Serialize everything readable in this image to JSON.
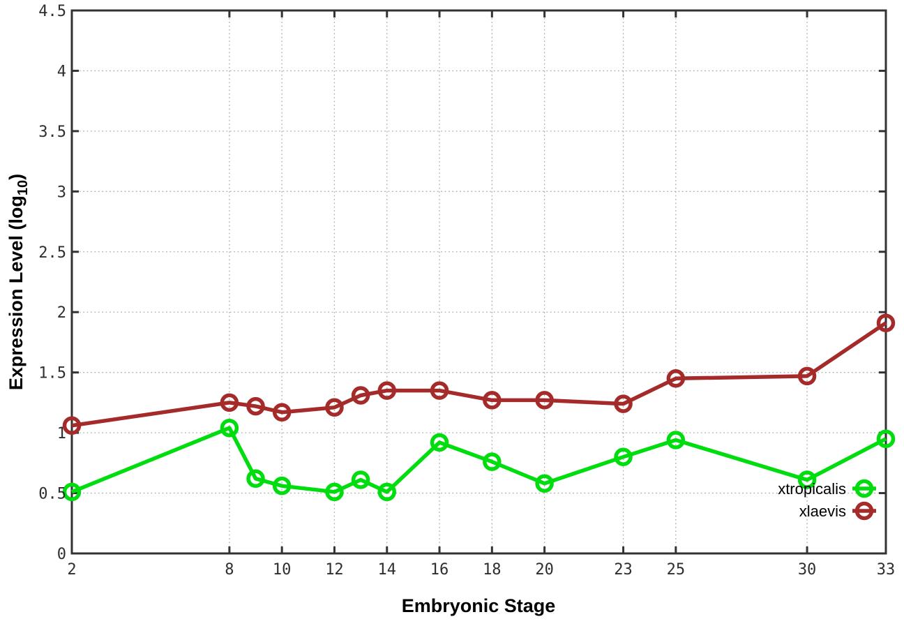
{
  "chart_data": {
    "type": "line",
    "title": "",
    "xlabel": "Embryonic Stage",
    "ylabel": "Expression Level (log10)",
    "ylabel_parts": {
      "main": "Expression Level (log",
      "sub": "10",
      "end": ")"
    },
    "xlim": [
      2,
      33
    ],
    "ylim": [
      0,
      4.5
    ],
    "grid": true,
    "x_tick_values": [
      2,
      8,
      10,
      12,
      14,
      16,
      18,
      20,
      23,
      25,
      30,
      33
    ],
    "x_tick_labels": [
      "2",
      "8",
      "10",
      "12",
      "14",
      "16",
      "18",
      "20",
      "23",
      "25",
      "30",
      "33"
    ],
    "y_tick_values": [
      0,
      0.5,
      1,
      1.5,
      2,
      2.5,
      3,
      3.5,
      4,
      4.5
    ],
    "y_tick_labels": [
      "0",
      "0.5",
      "1",
      "1.5",
      "2",
      "2.5",
      "3",
      "3.5",
      "4",
      "4.5"
    ],
    "x": [
      2,
      8,
      9,
      10,
      12,
      13,
      14,
      16,
      18,
      20,
      23,
      25,
      30,
      33
    ],
    "series": [
      {
        "name": "xtropicalis",
        "color": "#00dd0e",
        "marker": "open-circle",
        "values": [
          0.51,
          1.04,
          0.62,
          0.56,
          0.51,
          0.61,
          0.51,
          0.92,
          0.76,
          0.58,
          0.8,
          0.94,
          0.61,
          0.95
        ]
      },
      {
        "name": "xlaevis",
        "color": "#a52a2a",
        "marker": "open-circle",
        "values": [
          1.06,
          1.25,
          1.22,
          1.17,
          1.21,
          1.31,
          1.35,
          1.35,
          1.27,
          1.27,
          1.24,
          1.45,
          1.47,
          1.91
        ]
      }
    ],
    "legend_position": "inside-bottom-right"
  },
  "styles": {
    "background": "#ffffff",
    "border_color": "#333333",
    "grid_color": "#adadad",
    "tick_label_color": "#2e2e2e",
    "text_color": "#000000"
  }
}
